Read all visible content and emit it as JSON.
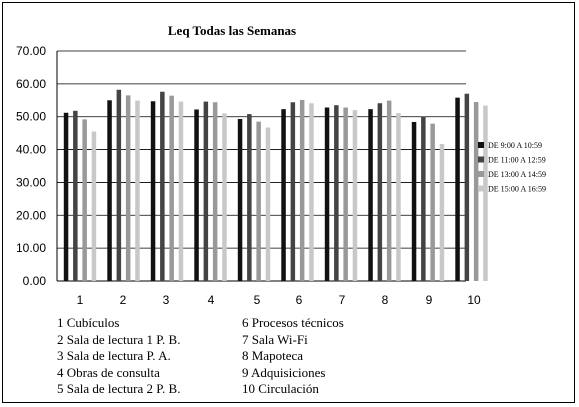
{
  "chart_data": {
    "type": "bar",
    "title": "Leq  Todas las Semanas",
    "xlabel": "",
    "ylabel": "",
    "ylim": [
      0,
      70
    ],
    "yticks": [
      "0.00",
      "10.00",
      "20.00",
      "30.00",
      "40.00",
      "50.00",
      "60.00",
      "70.00"
    ],
    "categories": [
      "1",
      "2",
      "3",
      "4",
      "5",
      "6",
      "7",
      "8",
      "9",
      "10"
    ],
    "grid": true,
    "legend_position": "right",
    "series": [
      {
        "name": "DE 9:00 A 10:59",
        "color": "#111111",
        "values": [
          51.2,
          55.0,
          54.7,
          52.2,
          49.3,
          52.3,
          52.8,
          52.3,
          48.4,
          55.8
        ]
      },
      {
        "name": "DE 11:00 A 12:59",
        "color": "#444444",
        "values": [
          51.8,
          58.2,
          57.6,
          54.6,
          50.8,
          54.4,
          53.5,
          54.1,
          50.0,
          57.0
        ]
      },
      {
        "name": "DE 13:00 A 14:59",
        "color": "#999999",
        "values": [
          49.2,
          56.5,
          56.4,
          54.4,
          48.5,
          55.1,
          52.8,
          54.9,
          47.9,
          54.5
        ]
      },
      {
        "name": "DE 15:00 A 16:59",
        "color": "#c8c8c8",
        "values": [
          45.5,
          54.9,
          54.6,
          51.0,
          46.7,
          54.1,
          52.0,
          51.1,
          41.7,
          53.4
        ]
      }
    ],
    "category_legend": [
      "1 Cubículos",
      "2 Sala de lectura 1 P. B.",
      "3 Sala  de lectura P. A.",
      "4 Obras de consulta",
      "5 Sala de lectura 2 P. B.",
      "6 Procesos técnicos",
      "7 Sala Wi-Fi",
      "8 Mapoteca",
      "9 Adquisiciones",
      "10 Circulación"
    ]
  }
}
